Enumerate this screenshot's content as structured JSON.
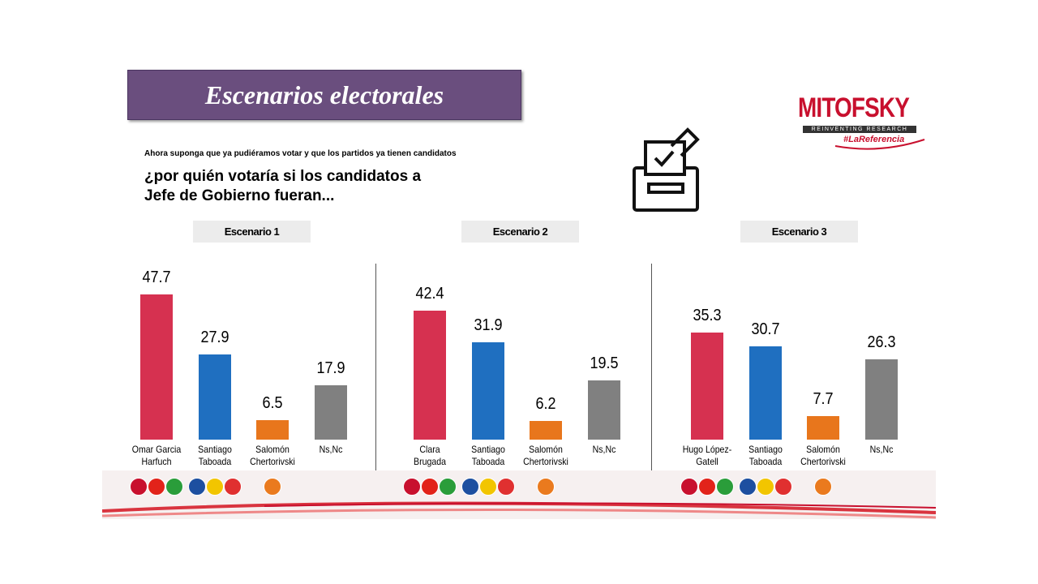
{
  "header": {
    "title": "Escenarios electorales",
    "subtitle": "Ahora suponga que ya pudiéramos votar y que los partidos ya tienen candidatos",
    "question": "¿por quién votaría si los candidatos a\nJefe de Gobierno fueran..."
  },
  "logo": {
    "name": "MITOFSKY",
    "tagline": "REINVENTING RESEARCH",
    "hashtag": "#LaReferencia"
  },
  "chart_data": [
    {
      "type": "bar",
      "title": "Escenario 1",
      "categories": [
        "Omar Garcia\nHarfuch",
        "Santiago\nTaboada",
        "Salomón\nChertorivski",
        "Ns,Nc"
      ],
      "values": [
        47.7,
        27.9,
        6.5,
        17.9
      ],
      "colors": [
        "#d63150",
        "#1f6fc0",
        "#e8761c",
        "#808080"
      ]
    },
    {
      "type": "bar",
      "title": "Escenario 2",
      "categories": [
        "Clara\nBrugada",
        "Santiago\nTaboada",
        "Salomón\nChertorivski",
        "Ns,Nc"
      ],
      "values": [
        42.4,
        31.9,
        6.2,
        19.5
      ],
      "colors": [
        "#d63150",
        "#1f6fc0",
        "#e8761c",
        "#808080"
      ]
    },
    {
      "type": "bar",
      "title": "Escenario 3",
      "categories": [
        "Hugo López-\nGatell",
        "Santiago\nTaboada",
        "Salomón\nChertorivski",
        "Ns,Nc"
      ],
      "values": [
        35.3,
        30.7,
        7.7,
        26.3
      ],
      "colors": [
        "#d63150",
        "#1f6fc0",
        "#e8761c",
        "#808080"
      ]
    }
  ]
}
